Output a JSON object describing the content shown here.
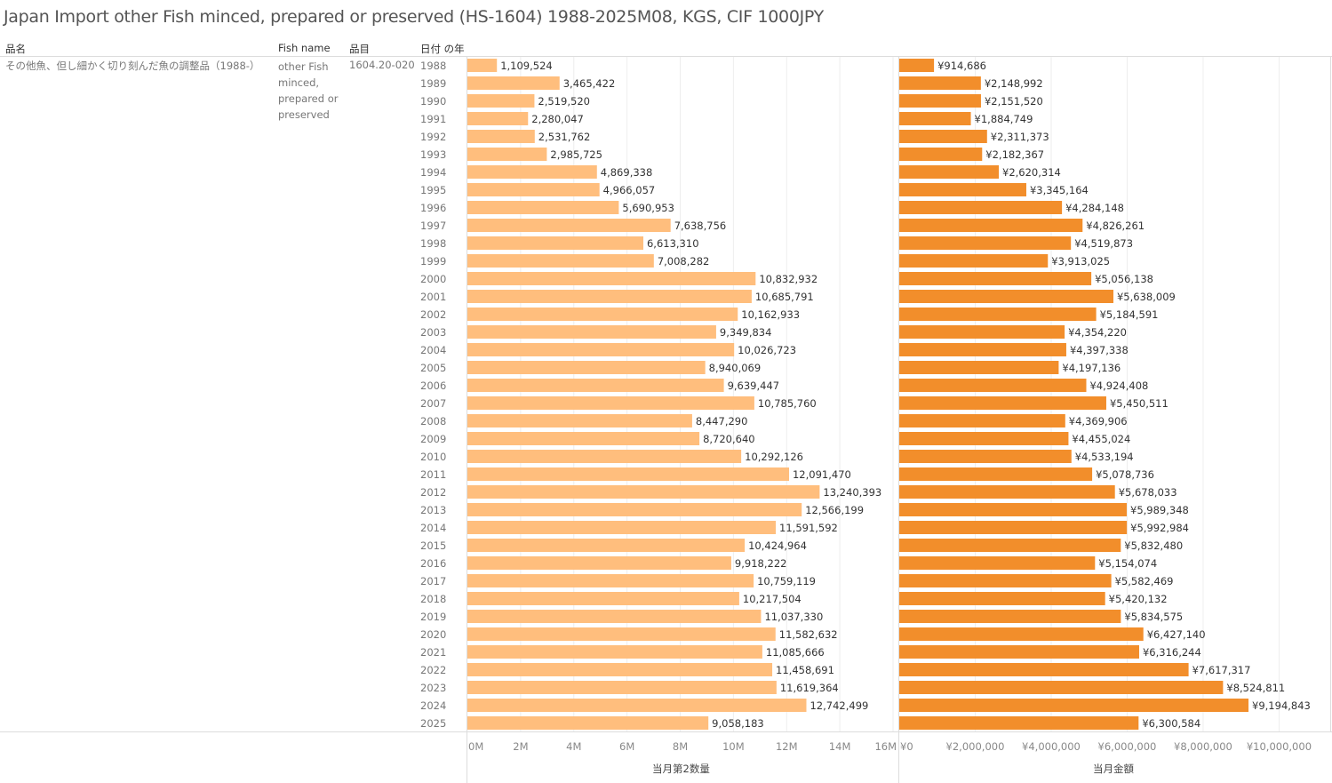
{
  "title": "Japan Import other Fish minced, prepared or preserved (HS-1604) 1988-2025M08, KGS, CIF 1000JPY",
  "headers": {
    "name": "品名",
    "fish": "Fish name",
    "code": "品目",
    "year": "日付 の年"
  },
  "row": {
    "name": "その他魚、但し細かく切り刻んだ魚の調整品（1988-）",
    "fish": "other Fish minced, prepared or preserved",
    "code": "1604.20-020"
  },
  "colors": {
    "qty": "#FFBE7D",
    "value": "#F28E2B"
  },
  "chart_data": [
    {
      "type": "bar",
      "orientation": "horizontal",
      "xlabel": "当月第2数量",
      "xlim": [
        0,
        16200000
      ],
      "ticks": [
        0,
        2000000,
        4000000,
        6000000,
        8000000,
        10000000,
        12000000,
        14000000,
        16000000
      ],
      "tick_labels": [
        "0M",
        "2M",
        "4M",
        "6M",
        "8M",
        "10M",
        "12M",
        "14M",
        "16M"
      ],
      "categories": [
        "1988",
        "1989",
        "1990",
        "1991",
        "1992",
        "1993",
        "1994",
        "1995",
        "1996",
        "1997",
        "1998",
        "1999",
        "2000",
        "2001",
        "2002",
        "2003",
        "2004",
        "2005",
        "2006",
        "2007",
        "2008",
        "2009",
        "2010",
        "2011",
        "2012",
        "2013",
        "2014",
        "2015",
        "2016",
        "2017",
        "2018",
        "2019",
        "2020",
        "2021",
        "2022",
        "2023",
        "2024",
        "2025"
      ],
      "values": [
        1109524,
        3465422,
        2519520,
        2280047,
        2531762,
        2985725,
        4869338,
        4966057,
        5690953,
        7638756,
        6613310,
        7008282,
        10832932,
        10685791,
        10162933,
        9349834,
        10026723,
        8940069,
        9639447,
        10785760,
        8447290,
        8720640,
        10292126,
        12091470,
        13240393,
        12566199,
        11591592,
        10424964,
        9918222,
        10759119,
        10217504,
        11037330,
        11582632,
        11085666,
        11458691,
        11619364,
        12742499,
        9058183
      ],
      "labels": [
        "1,109,524",
        "3,465,422",
        "2,519,520",
        "2,280,047",
        "2,531,762",
        "2,985,725",
        "4,869,338",
        "4,966,057",
        "5,690,953",
        "7,638,756",
        "6,613,310",
        "7,008,282",
        "10,832,932",
        "10,685,791",
        "10,162,933",
        "9,349,834",
        "10,026,723",
        "8,940,069",
        "9,639,447",
        "10,785,760",
        "8,447,290",
        "8,720,640",
        "10,292,126",
        "12,091,470",
        "13,240,393",
        "12,566,199",
        "11,591,592",
        "10,424,964",
        "9,918,222",
        "10,759,119",
        "10,217,504",
        "11,037,330",
        "11,582,632",
        "11,085,666",
        "11,458,691",
        "11,619,364",
        "12,742,499",
        "9,058,183"
      ]
    },
    {
      "type": "bar",
      "orientation": "horizontal",
      "xlabel": "当月金額",
      "xlim": [
        0,
        11370000
      ],
      "ticks": [
        0,
        2000000,
        4000000,
        6000000,
        8000000,
        10000000
      ],
      "tick_labels": [
        "¥0",
        "¥2,000,000",
        "¥4,000,000",
        "¥6,000,000",
        "¥8,000,000",
        "¥10,000,000"
      ],
      "values": [
        914686,
        2148992,
        2151520,
        1884749,
        2311373,
        2182367,
        2620314,
        3345164,
        4284148,
        4826261,
        4519873,
        3913025,
        5056138,
        5638009,
        5184591,
        4354220,
        4397338,
        4197136,
        4924408,
        5450511,
        4369906,
        4455024,
        4533194,
        5078736,
        5678033,
        5989348,
        5992984,
        5832480,
        5154074,
        5582469,
        5420132,
        5834575,
        6427140,
        6316244,
        7617317,
        8524811,
        9194843,
        6300584
      ],
      "labels": [
        "¥914,686",
        "¥2,148,992",
        "¥2,151,520",
        "¥1,884,749",
        "¥2,311,373",
        "¥2,182,367",
        "¥2,620,314",
        "¥3,345,164",
        "¥4,284,148",
        "¥4,826,261",
        "¥4,519,873",
        "¥3,913,025",
        "¥5,056,138",
        "¥5,638,009",
        "¥5,184,591",
        "¥4,354,220",
        "¥4,397,338",
        "¥4,197,136",
        "¥4,924,408",
        "¥5,450,511",
        "¥4,369,906",
        "¥4,455,024",
        "¥4,533,194",
        "¥5,078,736",
        "¥5,678,033",
        "¥5,989,348",
        "¥5,992,984",
        "¥5,832,480",
        "¥5,154,074",
        "¥5,582,469",
        "¥5,420,132",
        "¥5,834,575",
        "¥6,427,140",
        "¥6,316,244",
        "¥7,617,317",
        "¥8,524,811",
        "¥9,194,843",
        "¥6,300,584"
      ]
    }
  ]
}
